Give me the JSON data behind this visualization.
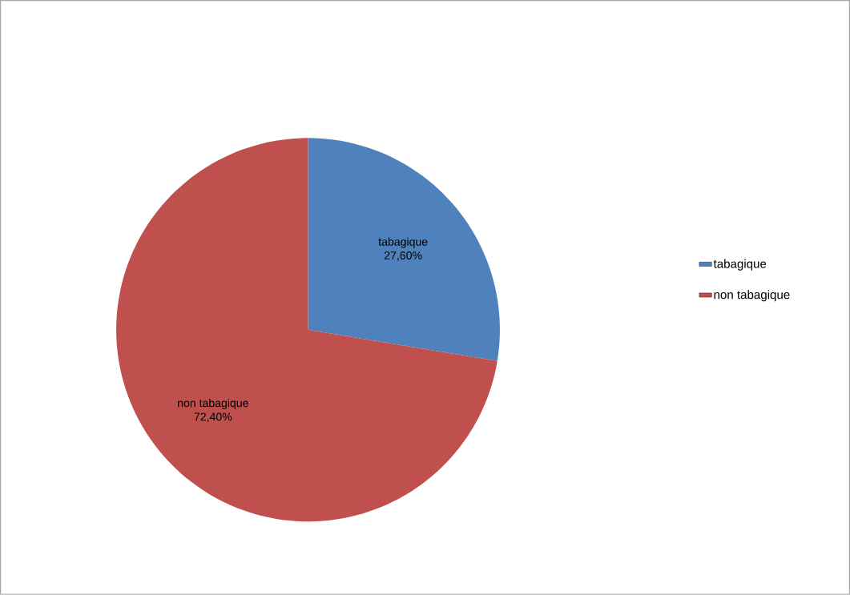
{
  "chart_data": {
    "type": "pie",
    "categories": [
      "tabagique",
      "non tabagique"
    ],
    "values": [
      27.6,
      72.4
    ],
    "colors": [
      "#4f81bd",
      "#c0504d"
    ],
    "value_labels": [
      "27,60%",
      "72,40%"
    ],
    "legend": "right"
  }
}
